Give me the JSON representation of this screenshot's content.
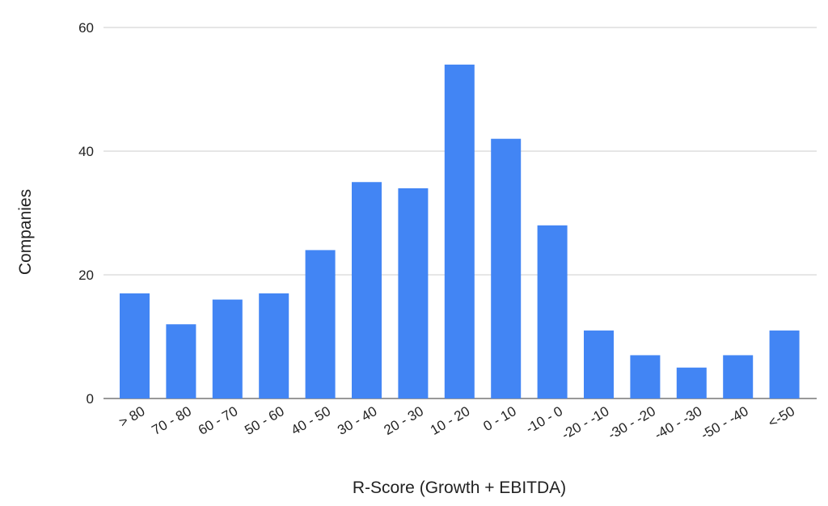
{
  "chart_data": {
    "type": "bar",
    "title": "",
    "xlabel": "R-Score (Growth + EBITDA)",
    "ylabel": "Companies",
    "ylim": [
      0,
      60
    ],
    "yticks": [
      0,
      20,
      40,
      60
    ],
    "grid": true,
    "bar_color": "#4285f4",
    "categories": [
      "> 80",
      "70 - 80",
      "60 - 70",
      "50 - 60",
      "40 - 50",
      "30 - 40",
      "20 - 30",
      "10 - 20",
      "0 - 10",
      "-10 - 0",
      "-20 - -10",
      "-30 - -20",
      "-40 - -30",
      "-50 - -40",
      "<-50"
    ],
    "values": [
      17,
      12,
      16,
      17,
      24,
      35,
      34,
      54,
      42,
      28,
      11,
      7,
      5,
      7,
      11
    ]
  }
}
